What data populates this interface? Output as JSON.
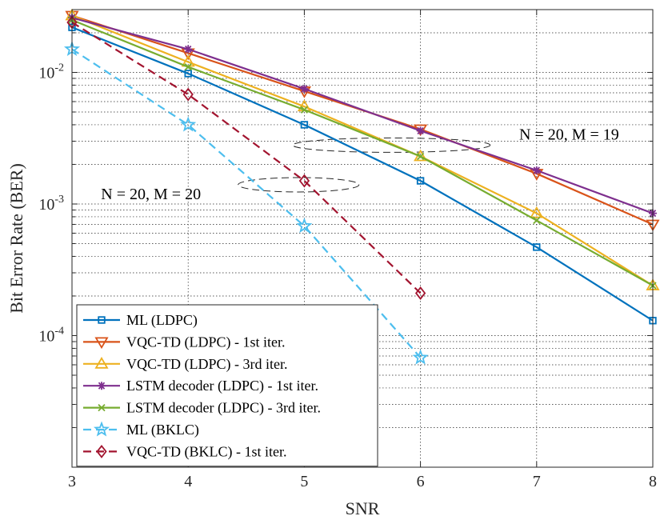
{
  "chart_data": {
    "type": "line",
    "xlabel": "SNR",
    "ylabel": "Bit Error Rate (BER)",
    "x_ticks": [
      "3",
      "4",
      "5",
      "6",
      "7",
      "8"
    ],
    "y_ticks": [
      {
        "base": "10",
        "exp": "-2"
      },
      {
        "base": "10",
        "exp": "-3"
      },
      {
        "base": "10",
        "exp": "-4"
      }
    ],
    "y_scale": "log",
    "xlim": [
      3,
      8
    ],
    "ylim": [
      1e-05,
      0.03
    ],
    "grid": true,
    "legend_position": "bottom-left",
    "series": [
      {
        "name": "ML (LDPC)",
        "color": "#0072BD",
        "marker": "square",
        "dashed": false,
        "x": [
          3,
          4,
          5,
          6,
          7,
          8
        ],
        "y": [
          0.022,
          0.0098,
          0.004,
          0.0015,
          0.00047,
          0.00013
        ]
      },
      {
        "name": "VQC-TD (LDPC) - 1st iter.",
        "color": "#D95319",
        "marker": "triangle-down",
        "dashed": false,
        "x": [
          3,
          4,
          5,
          6,
          7,
          8
        ],
        "y": [
          0.027,
          0.014,
          0.0072,
          0.0037,
          0.0017,
          0.0007
        ]
      },
      {
        "name": "VQC-TD (LDPC) - 3rd iter.",
        "color": "#EDB120",
        "marker": "triangle-up",
        "dashed": false,
        "x": [
          3,
          4,
          5,
          6,
          7,
          8
        ],
        "y": [
          0.027,
          0.012,
          0.0055,
          0.0023,
          0.00085,
          0.00024
        ]
      },
      {
        "name": "LSTM decoder (LDPC) - 1st iter.",
        "color": "#7E2F8E",
        "marker": "asterisk",
        "dashed": false,
        "x": [
          3,
          4,
          5,
          6,
          7,
          8
        ],
        "y": [
          0.026,
          0.015,
          0.0075,
          0.0036,
          0.0018,
          0.00085
        ]
      },
      {
        "name": "LSTM decoder (LDPC) - 3rd iter.",
        "color": "#77AC30",
        "marker": "x",
        "dashed": false,
        "x": [
          3,
          4,
          5,
          6,
          7,
          8
        ],
        "y": [
          0.025,
          0.011,
          0.0052,
          0.0023,
          0.00075,
          0.00024
        ]
      },
      {
        "name": "ML (BKLC)",
        "color": "#4DBEEE",
        "marker": "star",
        "dashed": true,
        "x": [
          3,
          4,
          5,
          6
        ],
        "y": [
          0.015,
          0.004,
          0.00068,
          6.8e-05
        ]
      },
      {
        "name": "VQC-TD (BKLC) - 1st iter.",
        "color": "#A2142F",
        "marker": "diamond",
        "dashed": true,
        "x": [
          3,
          4,
          5,
          6
        ],
        "y": [
          0.024,
          0.0068,
          0.0015,
          0.00021
        ]
      }
    ],
    "annotations": [
      {
        "text": "N = 20, M = 19",
        "x": 6.85,
        "y": 0.0034,
        "ellipse": {
          "cx": 5.75,
          "cy": 0.0028,
          "rx": 0.85
        }
      },
      {
        "text": "N = 20, M = 20",
        "x": 3.25,
        "y": 0.0012,
        "ellipse": {
          "cx": 4.95,
          "cy": 0.0014,
          "rx": 0.52
        }
      }
    ]
  }
}
